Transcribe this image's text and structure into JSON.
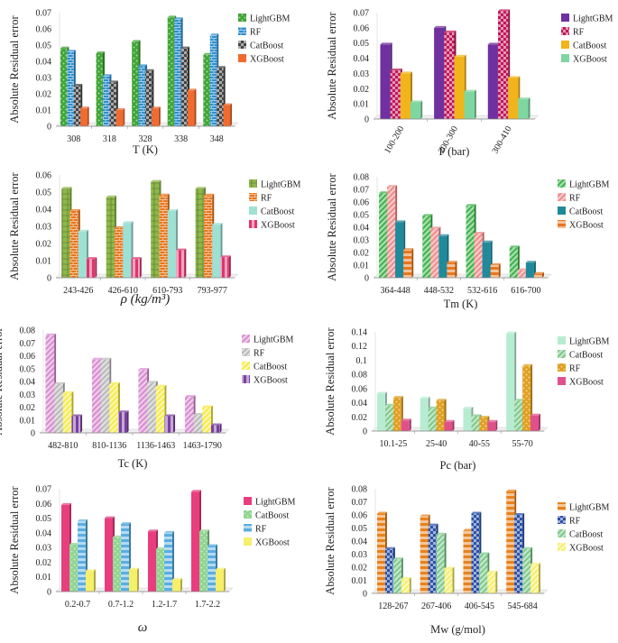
{
  "chart_data": [
    {
      "type": "bar",
      "ylabel": "Absolute Residual error",
      "xlabel": "T (K)",
      "categories": [
        "308",
        "318",
        "328",
        "338",
        "348"
      ],
      "ylim": [
        0,
        0.07
      ],
      "yticks": [
        "0",
        "0.01",
        "0.02",
        "0.03",
        "0.04",
        "0.05",
        "0.06",
        "0.07"
      ],
      "legend_position": "right",
      "series": [
        {
          "name": "LightGBM",
          "color": "#3fa535",
          "pattern": "dots",
          "values": [
            0.048,
            0.045,
            0.052,
            0.067,
            0.044
          ]
        },
        {
          "name": "RF",
          "color": "#2e8fd0",
          "pattern": "brick",
          "values": [
            0.046,
            0.031,
            0.037,
            0.066,
            0.056
          ]
        },
        {
          "name": "CatBoost",
          "color": "#444444",
          "pattern": "checker",
          "values": [
            0.025,
            0.027,
            0.034,
            0.048,
            0.036
          ]
        },
        {
          "name": "XGBoost",
          "color": "#f26a2e",
          "pattern": "solid",
          "values": [
            0.011,
            0.01,
            0.011,
            0.022,
            0.013
          ]
        }
      ]
    },
    {
      "type": "bar",
      "ylabel": "Absolute Residual error",
      "xlabel": "P (bar)",
      "categories": [
        "100-200",
        "200-300",
        "300-410"
      ],
      "ylim": [
        0,
        0.07
      ],
      "yticks": [
        "0",
        "0.01",
        "0.02",
        "0.03",
        "0.04",
        "0.05",
        "0.06",
        "0.07"
      ],
      "legend_position": "right",
      "series": [
        {
          "name": "LightGBM",
          "color": "#7030a0",
          "pattern": "solid",
          "values": [
            0.049,
            0.06,
            0.049
          ]
        },
        {
          "name": "RF",
          "color": "#c0185a",
          "pattern": "checker",
          "values": [
            0.032,
            0.057,
            0.071
          ]
        },
        {
          "name": "CatBoost",
          "color": "#f2b41b",
          "pattern": "solid",
          "values": [
            0.03,
            0.041,
            0.027
          ]
        },
        {
          "name": "XGBoost",
          "color": "#7ed6a0",
          "pattern": "solid",
          "values": [
            0.011,
            0.018,
            0.013
          ]
        }
      ]
    },
    {
      "type": "bar",
      "ylabel": "Absolute Residual error",
      "xlabel": "ρ (kg/m³)",
      "categories": [
        "243-426",
        "426-610",
        "610-793",
        "793-977"
      ],
      "ylim": [
        0,
        0.06
      ],
      "yticks": [
        "0",
        "0.01",
        "0.02",
        "0.03",
        "0.04",
        "0.05",
        "0.06"
      ],
      "legend_position": "right",
      "series": [
        {
          "name": "LightGBM",
          "color": "#8db84a",
          "pattern": "grid",
          "values": [
            0.052,
            0.047,
            0.056,
            0.052
          ]
        },
        {
          "name": "RF",
          "color": "#e8761c",
          "pattern": "brick",
          "values": [
            0.039,
            0.029,
            0.048,
            0.048
          ]
        },
        {
          "name": "CatBoost",
          "color": "#9ee0d4",
          "pattern": "solid",
          "values": [
            0.027,
            0.032,
            0.039,
            0.031
          ]
        },
        {
          "name": "XGBoost",
          "color": "#e0346e",
          "pattern": "vlines",
          "values": [
            0.011,
            0.011,
            0.016,
            0.012
          ]
        }
      ]
    },
    {
      "type": "bar",
      "ylabel": "Absolute Residual error",
      "xlabel": "Tm (K)",
      "categories": [
        "364-448",
        "448-532",
        "532-616",
        "616-700"
      ],
      "ylim": [
        0,
        0.08
      ],
      "yticks": [
        "0",
        "0.01",
        "0.02",
        "0.03",
        "0.04",
        "0.05",
        "0.06",
        "0.07",
        "0.08"
      ],
      "legend_position": "right",
      "series": [
        {
          "name": "LightGBM",
          "color": "#3db34a",
          "pattern": "diag",
          "values": [
            0.067,
            0.049,
            0.057,
            0.024
          ]
        },
        {
          "name": "RF",
          "color": "#f08a8a",
          "pattern": "diag",
          "values": [
            0.072,
            0.039,
            0.035,
            0.006
          ]
        },
        {
          "name": "CatBoost",
          "color": "#1f8a9c",
          "pattern": "solid",
          "values": [
            0.044,
            0.033,
            0.028,
            0.012
          ]
        },
        {
          "name": "XGBoost",
          "color": "#e8761c",
          "pattern": "hlines",
          "values": [
            0.022,
            0.012,
            0.01,
            0.003
          ]
        }
      ]
    },
    {
      "type": "bar",
      "ylabel": "Absolute Residual error",
      "xlabel": "Tc (K)",
      "categories": [
        "482-810",
        "810-1136",
        "1136-1463",
        "1463-1790"
      ],
      "ylim": [
        0,
        0.08
      ],
      "yticks": [
        "0",
        "0.01",
        "0.02",
        "0.03",
        "0.04",
        "0.05",
        "0.06",
        "0.07",
        "0.08"
      ],
      "legend_position": "right",
      "series": [
        {
          "name": "LightGBM",
          "color": "#d98bd0",
          "pattern": "diag",
          "values": [
            0.076,
            0.057,
            0.049,
            0.028
          ]
        },
        {
          "name": "RF",
          "color": "#b9b9b9",
          "pattern": "diag",
          "values": [
            0.038,
            0.057,
            0.039,
            0.014
          ]
        },
        {
          "name": "CatBoost",
          "color": "#f5ec4a",
          "pattern": "diag",
          "values": [
            0.031,
            0.038,
            0.036,
            0.02
          ]
        },
        {
          "name": "XGBoost",
          "color": "#7b3fa0",
          "pattern": "vlines",
          "values": [
            0.013,
            0.016,
            0.013,
            0.006
          ]
        }
      ]
    },
    {
      "type": "bar",
      "ylabel": "Absolute Residual error",
      "xlabel": "Pc (bar)",
      "categories": [
        "10.1-25",
        "25-40",
        "40-55",
        "55-70"
      ],
      "ylim": [
        0,
        0.14
      ],
      "yticks": [
        "0",
        "0.02",
        "0.04",
        "0.06",
        "0.08",
        "0.1",
        "0.12",
        "0.14"
      ],
      "legend_position": "right",
      "series": [
        {
          "name": "LightGBM",
          "color": "#b8ecd2",
          "pattern": "solid",
          "values": [
            0.053,
            0.046,
            0.032,
            0.138
          ]
        },
        {
          "name": "CatBoost",
          "color": "#7cc98a",
          "pattern": "diag",
          "values": [
            0.036,
            0.032,
            0.021,
            0.043
          ]
        },
        {
          "name": "RF",
          "color": "#e0a020",
          "pattern": "dots",
          "values": [
            0.047,
            0.043,
            0.019,
            0.092
          ]
        },
        {
          "name": "XGBoost",
          "color": "#e0508a",
          "pattern": "solid",
          "values": [
            0.015,
            0.013,
            0.013,
            0.022
          ]
        }
      ]
    },
    {
      "type": "bar",
      "ylabel": "Absolute Residual error",
      "xlabel": "ω",
      "categories": [
        "0.2-0.7",
        "0.7-1.2",
        "1.2-1.7",
        "1.7-2.2"
      ],
      "ylim": [
        0,
        0.07
      ],
      "yticks": [
        "0",
        "0.01",
        "0.02",
        "0.03",
        "0.04",
        "0.05",
        "0.06",
        "0.07"
      ],
      "legend_position": "right",
      "series": [
        {
          "name": "LightGBM",
          "color": "#e83e7e",
          "pattern": "solid",
          "values": [
            0.059,
            0.05,
            0.041,
            0.068
          ]
        },
        {
          "name": "CatBoost",
          "color": "#8fd48f",
          "pattern": "dots",
          "values": [
            0.032,
            0.037,
            0.029,
            0.041
          ]
        },
        {
          "name": "RF",
          "color": "#5aaee0",
          "pattern": "hlines",
          "values": [
            0.048,
            0.046,
            0.04,
            0.031
          ]
        },
        {
          "name": "XGBoost",
          "color": "#f5ef6a",
          "pattern": "solid",
          "values": [
            0.014,
            0.015,
            0.008,
            0.015
          ]
        }
      ]
    },
    {
      "type": "bar",
      "ylabel": "Absolute Residual error",
      "xlabel": "Mw (g/mol)",
      "categories": [
        "128-267",
        "267-406",
        "406-545",
        "545-684"
      ],
      "ylim": [
        0,
        0.08
      ],
      "yticks": [
        "0",
        "0.01",
        "0.02",
        "0.03",
        "0.04",
        "0.05",
        "0.06",
        "0.07",
        "0.08"
      ],
      "legend_position": "right",
      "series": [
        {
          "name": "LightGBM",
          "color": "#e8821c",
          "pattern": "hlines",
          "values": [
            0.061,
            0.059,
            0.048,
            0.078
          ]
        },
        {
          "name": "RF",
          "color": "#2a52a8",
          "pattern": "checker",
          "values": [
            0.034,
            0.052,
            0.061,
            0.06
          ]
        },
        {
          "name": "CatBoost",
          "color": "#7cc98a",
          "pattern": "diag",
          "values": [
            0.026,
            0.045,
            0.03,
            0.034
          ]
        },
        {
          "name": "XGBoost",
          "color": "#f5ef6a",
          "pattern": "diag",
          "values": [
            0.011,
            0.019,
            0.016,
            0.022
          ]
        }
      ]
    }
  ]
}
